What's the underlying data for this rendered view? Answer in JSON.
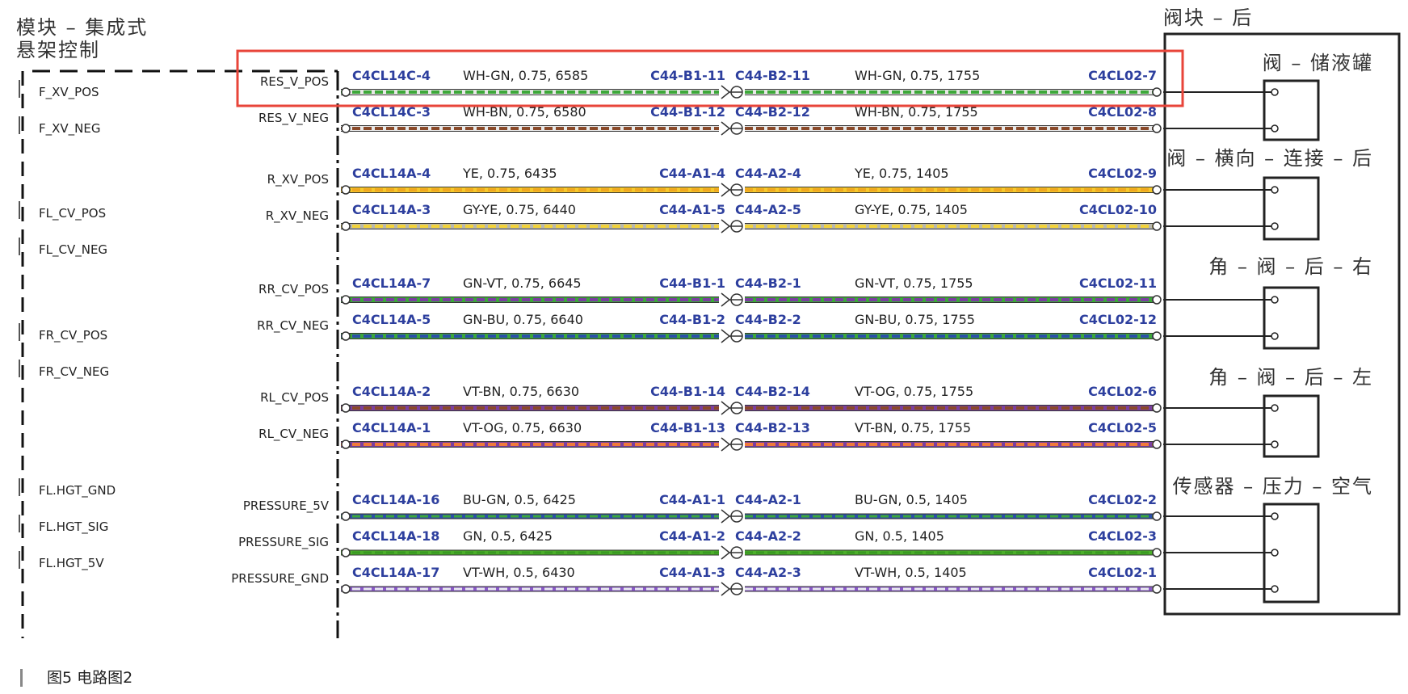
{
  "module": {
    "title_line1": "模块 – 集成式",
    "title_line2": "悬架控制"
  },
  "valve_block": {
    "title": "阀块 – 后"
  },
  "left_side_labels": [
    "F_XV_POS",
    "F_XV_NEG",
    "FL_CV_POS",
    "FL_CV_NEG",
    "FR_CV_POS",
    "FR_CV_NEG",
    "FL.HGT_GND",
    "FL.HGT_SIG",
    "FL.HGT_5V"
  ],
  "components": [
    {
      "name": "阀 – 储液罐",
      "pins": 2
    },
    {
      "name": "阀 – 横向 – 连接 – 后",
      "pins": 2
    },
    {
      "name": "角 – 阀 – 后 – 右",
      "pins": 2
    },
    {
      "name": "角 – 阀 – 后 – 左",
      "pins": 2
    },
    {
      "name": "传感器 – 压力 – 空气",
      "pins": 3
    }
  ],
  "wires": [
    {
      "pin": "RES_V_POS",
      "src": "C4CL14C-4",
      "spec1": "WH-GN, 0.75, 6585",
      "inline_a": "C44-B1-11",
      "inline_b": "C44-B2-11",
      "spec2": "WH-GN, 0.75, 1755",
      "dst": "C4CL02-7",
      "colors": [
        "#e8e8e8",
        "#3da83a"
      ]
    },
    {
      "pin": "RES_V_NEG",
      "src": "C4CL14C-3",
      "spec1": "WH-BN, 0.75, 6580",
      "inline_a": "C44-B1-12",
      "inline_b": "C44-B2-12",
      "spec2": "WH-BN, 0.75, 1755",
      "dst": "C4CL02-8",
      "colors": [
        "#e8e8e8",
        "#8a4a2a"
      ]
    },
    {
      "pin": "R_XV_POS",
      "src": "C4CL14A-4",
      "spec1": "YE, 0.75, 6435",
      "inline_a": "C44-A1-4",
      "inline_b": "C44-A2-4",
      "spec2": "YE, 0.75, 1405",
      "dst": "C4CL02-9",
      "colors": [
        "#f5c92b",
        "#f0a820"
      ]
    },
    {
      "pin": "R_XV_NEG",
      "src": "C4CL14A-3",
      "spec1": "GY-YE, 0.75, 6440",
      "inline_a": "C44-A1-5",
      "inline_b": "C44-A2-5",
      "spec2": "GY-YE, 0.75, 1405",
      "dst": "C4CL02-10",
      "colors": [
        "#b8b8b0",
        "#f2d23a"
      ]
    },
    {
      "pin": "RR_CV_POS",
      "src": "C4CL14A-7",
      "spec1": "GN-VT, 0.75, 6645",
      "inline_a": "C44-B1-1",
      "inline_b": "C44-B2-1",
      "spec2": "GN-VT, 0.75, 1755",
      "dst": "C4CL02-11",
      "colors": [
        "#3da83a",
        "#7b3fa0"
      ]
    },
    {
      "pin": "RR_CV_NEG",
      "src": "C4CL14A-5",
      "spec1": "GN-BU, 0.75, 6640",
      "inline_a": "C44-B1-2",
      "inline_b": "C44-B2-2",
      "spec2": "GN-BU, 0.75, 1755",
      "dst": "C4CL02-12",
      "colors": [
        "#3da83a",
        "#2b4fa8"
      ]
    },
    {
      "pin": "RL_CV_POS",
      "src": "C4CL14A-2",
      "spec1": "VT-BN, 0.75, 6630",
      "inline_a": "C44-B1-14",
      "inline_b": "C44-B2-14",
      "spec2": "VT-OG, 0.75, 1755",
      "dst": "C4CL02-6",
      "colors": [
        "#7b3fa0",
        "#8a4a2a"
      ]
    },
    {
      "pin": "RL_CV_NEG",
      "src": "C4CL14A-1",
      "spec1": "VT-OG, 0.75, 6630",
      "inline_a": "C44-B1-13",
      "inline_b": "C44-B2-13",
      "spec2": "VT-BN, 0.75, 1755",
      "dst": "C4CL02-5",
      "colors": [
        "#7b3fa0",
        "#f07a3a"
      ]
    },
    {
      "pin": "PRESSURE_5V",
      "src": "C4CL14A-16",
      "spec1": "BU-GN, 0.5, 6425",
      "inline_a": "C44-A1-1",
      "inline_b": "C44-A2-1",
      "spec2": "BU-GN, 0.5, 1405",
      "dst": "C4CL02-2",
      "colors": [
        "#2b4fa8",
        "#3da83a"
      ]
    },
    {
      "pin": "PRESSURE_SIG",
      "src": "C4CL14A-18",
      "spec1": "GN, 0.5, 6425",
      "inline_a": "C44-A1-2",
      "inline_b": "C44-A2-2",
      "spec2": "GN, 0.5, 1405",
      "dst": "C4CL02-3",
      "colors": [
        "#4cb02a",
        "#3a9a22"
      ]
    },
    {
      "pin": "PRESSURE_GND",
      "src": "C4CL14A-17",
      "spec1": "VT-WH, 0.5, 6430",
      "inline_a": "C44-A1-3",
      "inline_b": "C44-A2-3",
      "spec2": "VT-WH, 0.5, 1405",
      "dst": "C4CL02-1",
      "colors": [
        "#8a5ac8",
        "#e8e8f0"
      ]
    }
  ],
  "caption": "图5   电路图2",
  "highlight_color": "#e8453a"
}
